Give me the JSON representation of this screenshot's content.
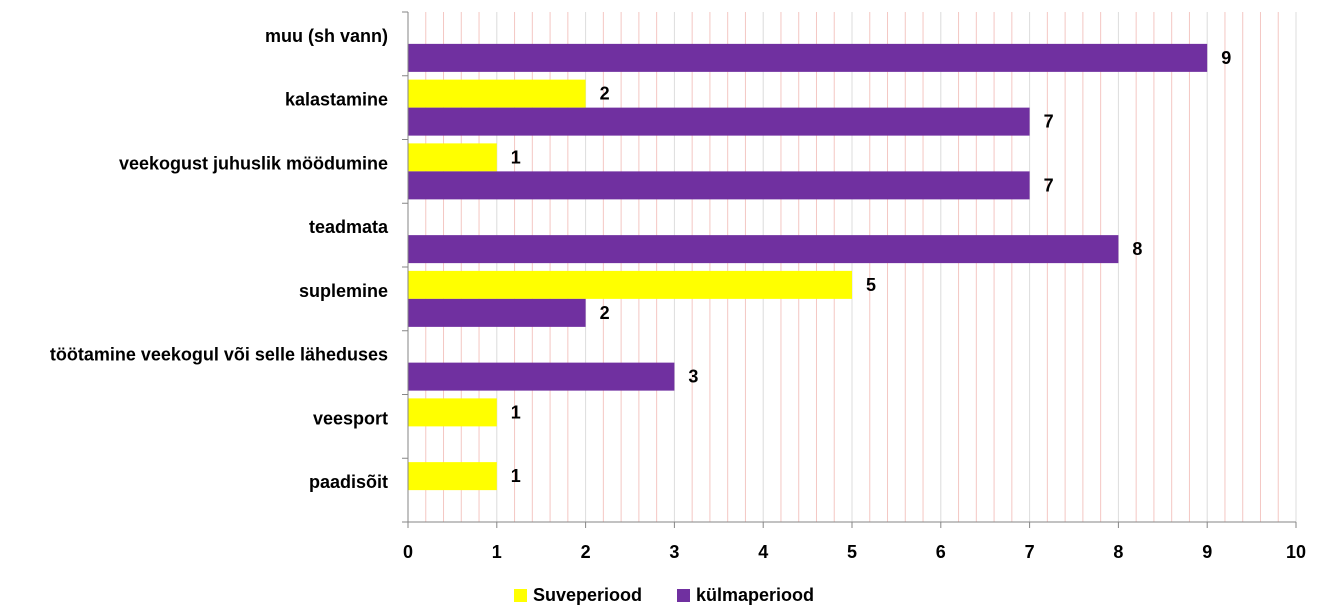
{
  "chart_data": {
    "type": "bar",
    "orientation": "horizontal",
    "categories": [
      "muu (sh vann)",
      "kalastamine",
      "veekogust juhuslik möödumine",
      "teadmata",
      "suplemine",
      "töötamine veekogul või selle läheduses",
      "veesport",
      "paadisõit"
    ],
    "series": [
      {
        "name": "Suveperiood",
        "color": "#ffff00",
        "values": [
          null,
          2,
          1,
          null,
          5,
          null,
          1,
          1
        ]
      },
      {
        "name": "külmaperiood",
        "color": "#7030a0",
        "values": [
          9,
          7,
          7,
          8,
          2,
          3,
          null,
          null
        ]
      }
    ],
    "xlim": [
      0,
      10
    ],
    "x_ticks": [
      "0",
      "1",
      "2",
      "3",
      "4",
      "5",
      "6",
      "7",
      "8",
      "9",
      "10"
    ],
    "grid": true,
    "grid_color": "#f4c7c3",
    "data_labels": true,
    "legend_position": "bottom"
  }
}
